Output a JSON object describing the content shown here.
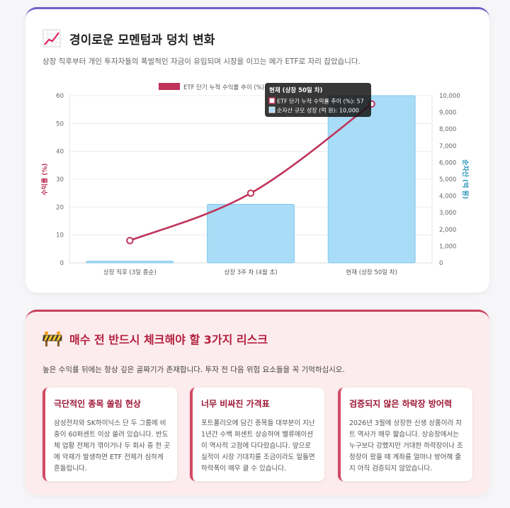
{
  "momentum": {
    "title": "경이로운 모멘텀과 덩치 변화",
    "description": "상장 직후부터 개인 투자자들의 폭발적인 자금이 유입되며 시장을 이끄는 메가 ETF로 자리 잡았습니다.",
    "icon": "chart-increasing-icon"
  },
  "chart_data": {
    "type": "bar",
    "categories": [
      "상장 직후 (3일 종순)",
      "상장 3주 차 (4월 초)",
      "현재 (상장 50일 차)"
    ],
    "series": [
      {
        "name": "ETF 단기 누적 수익률 추이 (%)",
        "type": "line",
        "axis": "left",
        "color": "#c0335a",
        "values": [
          8,
          25,
          57
        ]
      },
      {
        "name": "순자산 규모 성장 (억 원)",
        "type": "bar",
        "axis": "right",
        "color": "#a9dcf6",
        "values": [
          100,
          3500,
          10000
        ]
      }
    ],
    "ylabel_left": "수익률 (%)",
    "ylabel_right": "순자산 (억 원)",
    "ylim_left": [
      0,
      60
    ],
    "ylim_right": [
      0,
      10000
    ],
    "yticks_left": [
      "0",
      "10",
      "20",
      "30",
      "40",
      "50",
      "60"
    ],
    "yticks_right": [
      "0",
      "1,000",
      "2,000",
      "3,000",
      "4,000",
      "5,000",
      "6,000",
      "7,000",
      "8,000",
      "9,000",
      "10,000"
    ],
    "legend_position": "top",
    "grid": true,
    "tooltip": {
      "title": "현재 (상장 50일 차)",
      "line1": "ETF 단기 누적 수익률 추이 (%): 57",
      "line2": "순자산 규모 성장 (억 원): 10,000"
    }
  },
  "risks": {
    "title": "매수 전 반드시 체크해야 할 3가지 리스크",
    "icon": "construction-barrier-icon",
    "description": "높은 수익률 뒤에는 항상 깊은 골짜기가 존재합니다. 투자 전 다음 위험 요소들을 꼭 기억하십시오.",
    "items": [
      {
        "title": "극단적인 종목 쏠림 현상",
        "body": "삼성전자와 SK하이닉스 단 두 그룹에 비중이 60퍼센트 이상 쏠려 있습니다. 반도체 업황 전체가 꺾이거나 두 회사 중 한 곳에 악재가 발생하면 ETF 전체가 심하게 흔들립니다."
      },
      {
        "title": "너무 비싸진 가격표",
        "body": "포트폴리오에 담긴 종목들 대부분이 지난 1년간 수백 퍼센트 상승하여 밸류에이션이 역사적 고점에 다다랐습니다. 앞으로 실적이 시장 기대치를 조금이라도 밑돌면 하락폭이 매우 클 수 있습니다."
      },
      {
        "title": "검증되지 않은 하락장 방어력",
        "body": "2026년 3월에 상장한 신생 상품이라 차트 역사가 매우 짧습니다. 상승장에서는 누구보다 강했지만 거대한 하락장이나 조정장이 왔을 때 계좌를 얼마나 방어해 줄지 아직 검증되지 않았습니다."
      }
    ]
  }
}
